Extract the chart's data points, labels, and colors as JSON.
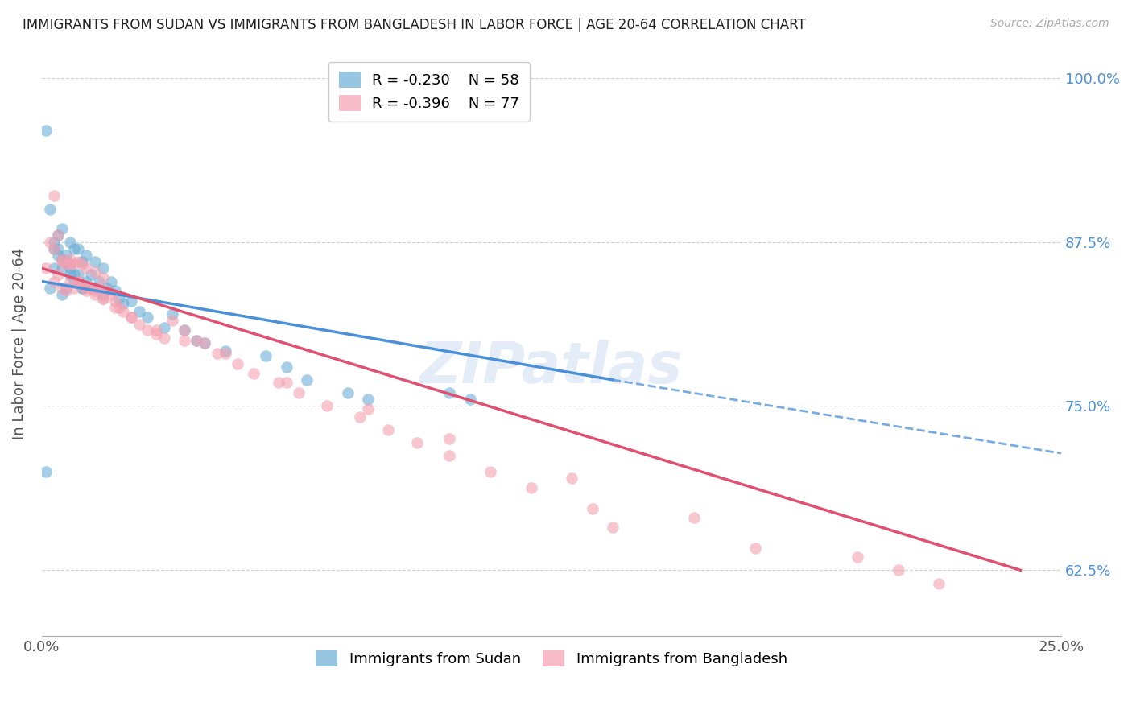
{
  "title": "IMMIGRANTS FROM SUDAN VS IMMIGRANTS FROM BANGLADESH IN LABOR FORCE | AGE 20-64 CORRELATION CHART",
  "source": "Source: ZipAtlas.com",
  "ylabel": "In Labor Force | Age 20-64",
  "xlim": [
    0.0,
    0.25
  ],
  "ylim": [
    0.575,
    1.02
  ],
  "yticks": [
    0.625,
    0.75,
    0.875,
    1.0
  ],
  "ytick_labels": [
    "62.5%",
    "75.0%",
    "87.5%",
    "100.0%"
  ],
  "xticks": [
    0.0,
    0.05,
    0.1,
    0.15,
    0.2,
    0.25
  ],
  "xtick_labels": [
    "0.0%",
    "",
    "",
    "",
    "",
    "25.0%"
  ],
  "sudan_R": -0.23,
  "sudan_N": 58,
  "bangladesh_R": -0.396,
  "bangladesh_N": 77,
  "sudan_color": "#6baed6",
  "bangladesh_color": "#f4a0b0",
  "sudan_line_color": "#4a90d9",
  "bangladesh_line_color": "#e05070",
  "grid_color": "#cccccc",
  "right_tick_color": "#4a90d9",
  "watermark": "ZIPatlas",
  "sudan_line_x0": 0.0,
  "sudan_line_y0": 0.845,
  "sudan_line_x1": 0.14,
  "sudan_line_y1": 0.77,
  "sudan_line_dashed_x1": 0.25,
  "sudan_line_dashed_y1": 0.714,
  "bangladesh_line_x0": 0.0,
  "bangladesh_line_y0": 0.855,
  "bangladesh_line_x1": 0.24,
  "bangladesh_line_y1": 0.625,
  "sudan_points_x": [
    0.001,
    0.002,
    0.003,
    0.003,
    0.004,
    0.004,
    0.005,
    0.005,
    0.005,
    0.006,
    0.006,
    0.007,
    0.007,
    0.008,
    0.008,
    0.009,
    0.009,
    0.01,
    0.01,
    0.011,
    0.011,
    0.012,
    0.013,
    0.013,
    0.014,
    0.015,
    0.015,
    0.016,
    0.017,
    0.018,
    0.019,
    0.02,
    0.022,
    0.024,
    0.026,
    0.03,
    0.032,
    0.035,
    0.038,
    0.04,
    0.045,
    0.055,
    0.06,
    0.065,
    0.075,
    0.08,
    0.1,
    0.105,
    0.001,
    0.002,
    0.003,
    0.004,
    0.005,
    0.006,
    0.007,
    0.008,
    0.009,
    0.01
  ],
  "sudan_points_y": [
    0.7,
    0.84,
    0.855,
    0.87,
    0.865,
    0.88,
    0.835,
    0.855,
    0.885,
    0.84,
    0.86,
    0.85,
    0.875,
    0.845,
    0.87,
    0.85,
    0.87,
    0.84,
    0.86,
    0.845,
    0.865,
    0.85,
    0.84,
    0.86,
    0.845,
    0.835,
    0.855,
    0.84,
    0.845,
    0.838,
    0.832,
    0.828,
    0.83,
    0.822,
    0.818,
    0.81,
    0.82,
    0.808,
    0.8,
    0.798,
    0.792,
    0.788,
    0.78,
    0.77,
    0.76,
    0.755,
    0.76,
    0.755,
    0.96,
    0.9,
    0.875,
    0.87,
    0.862,
    0.865,
    0.855,
    0.85,
    0.845,
    0.84
  ],
  "bangladesh_points_x": [
    0.001,
    0.002,
    0.003,
    0.003,
    0.004,
    0.004,
    0.005,
    0.005,
    0.006,
    0.006,
    0.007,
    0.007,
    0.008,
    0.008,
    0.009,
    0.009,
    0.01,
    0.01,
    0.011,
    0.011,
    0.012,
    0.013,
    0.013,
    0.014,
    0.015,
    0.015,
    0.016,
    0.017,
    0.018,
    0.019,
    0.02,
    0.022,
    0.024,
    0.026,
    0.028,
    0.03,
    0.032,
    0.035,
    0.038,
    0.04,
    0.043,
    0.048,
    0.052,
    0.058,
    0.063,
    0.07,
    0.078,
    0.085,
    0.092,
    0.1,
    0.11,
    0.12,
    0.135,
    0.003,
    0.005,
    0.007,
    0.009,
    0.011,
    0.013,
    0.015,
    0.018,
    0.022,
    0.028,
    0.035,
    0.045,
    0.06,
    0.08,
    0.1,
    0.13,
    0.16,
    0.2,
    0.22,
    0.14,
    0.175,
    0.21
  ],
  "bangladesh_points_y": [
    0.855,
    0.875,
    0.845,
    0.87,
    0.85,
    0.88,
    0.84,
    0.86,
    0.838,
    0.858,
    0.845,
    0.862,
    0.84,
    0.858,
    0.845,
    0.86,
    0.842,
    0.858,
    0.838,
    0.855,
    0.84,
    0.835,
    0.852,
    0.84,
    0.832,
    0.848,
    0.838,
    0.835,
    0.83,
    0.825,
    0.822,
    0.818,
    0.812,
    0.808,
    0.805,
    0.802,
    0.815,
    0.808,
    0.8,
    0.798,
    0.79,
    0.782,
    0.775,
    0.768,
    0.76,
    0.75,
    0.742,
    0.732,
    0.722,
    0.712,
    0.7,
    0.688,
    0.672,
    0.91,
    0.862,
    0.858,
    0.845,
    0.84,
    0.838,
    0.832,
    0.825,
    0.818,
    0.808,
    0.8,
    0.79,
    0.768,
    0.748,
    0.725,
    0.695,
    0.665,
    0.635,
    0.615,
    0.658,
    0.642,
    0.625
  ]
}
